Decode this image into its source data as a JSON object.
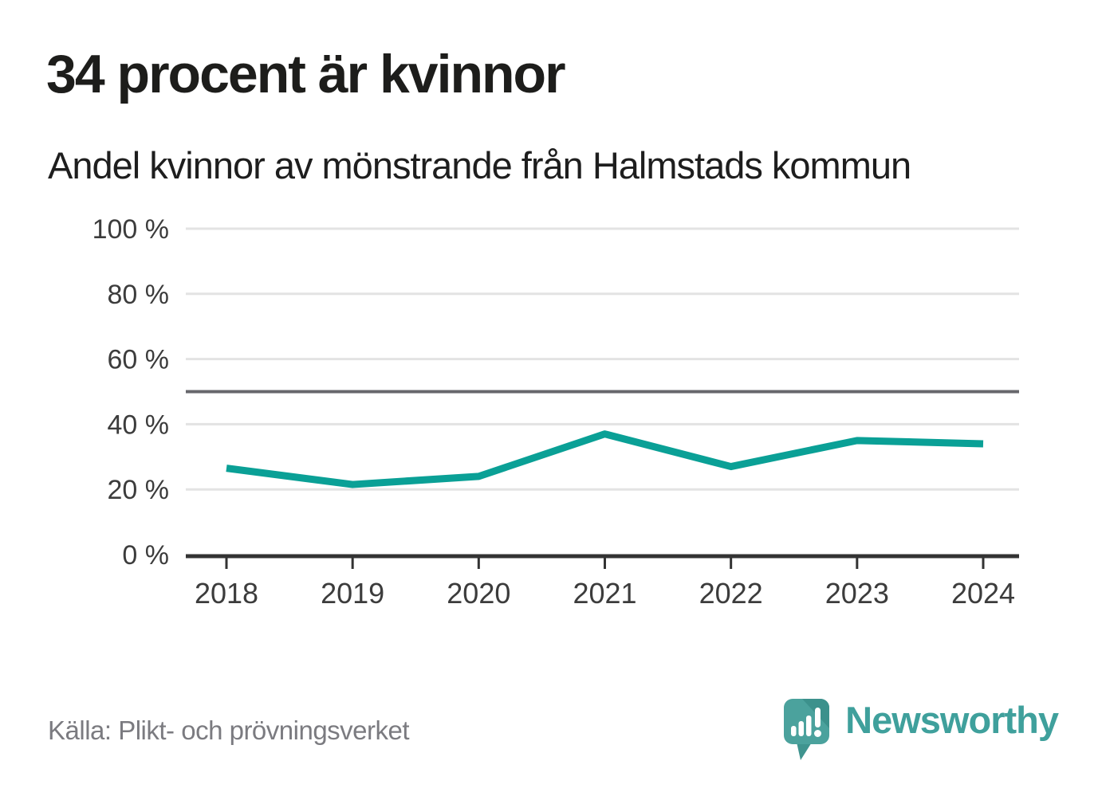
{
  "header": {
    "title": "34 procent är kvinnor",
    "subtitle": "Andel kvinnor av mönstrande från Halmstads kommun"
  },
  "footer": {
    "source": "Källa: Plikt- och prövningsverket",
    "brand": "Newsworthy"
  },
  "colors": {
    "accent_line": "#0aa096",
    "gridline": "#e3e3e3",
    "reference_line": "#67676c",
    "axis": "#333333",
    "axis_text": "#3c3c3c",
    "title_text": "#1d1d1b",
    "source_text": "#7b7b80",
    "brand_teal": "#3fa09c",
    "brand_icon_teal": "#4ba29d",
    "brand_icon_dark": "#3c918c"
  },
  "chart_data": {
    "type": "line",
    "title": "34 procent är kvinnor",
    "subtitle": "Andel kvinnor av mönstrande från Halmstads kommun",
    "x": [
      "2018",
      "2019",
      "2020",
      "2021",
      "2022",
      "2023",
      "2024"
    ],
    "values": [
      26.5,
      21.5,
      24,
      37,
      27,
      35,
      34
    ],
    "unit": "%",
    "ylim": [
      0,
      100
    ],
    "y_ticks": [
      0,
      20,
      40,
      60,
      80,
      100
    ],
    "y_tick_labels": [
      "0 %",
      "20 %",
      "40 %",
      "60 %",
      "80 %",
      "100 %"
    ],
    "reference_line": 50,
    "grid": true,
    "legend": "none"
  }
}
